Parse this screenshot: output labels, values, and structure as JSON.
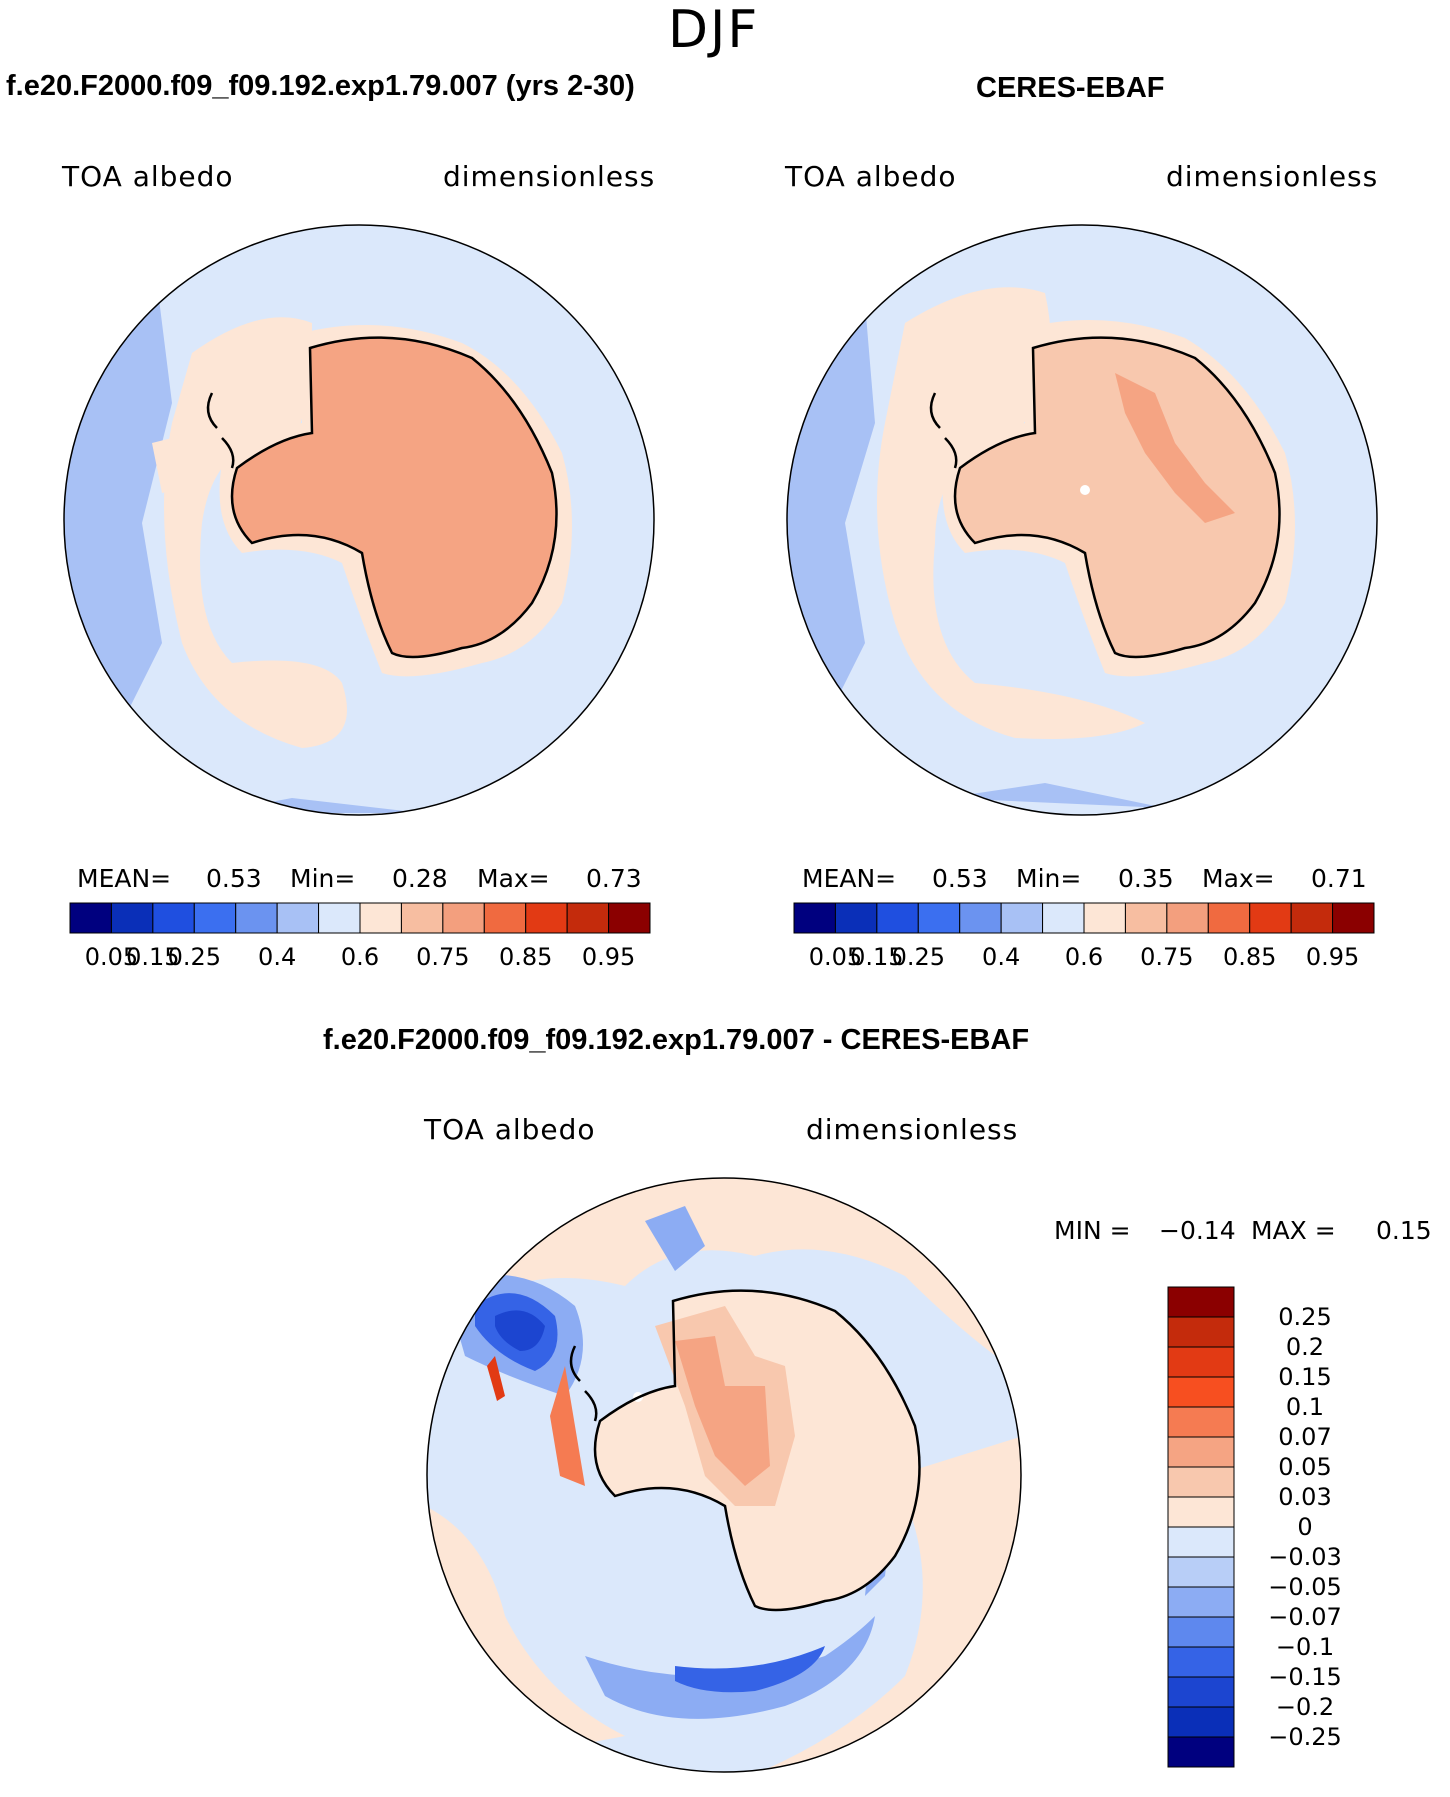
{
  "figure": {
    "season": "DJF",
    "panels": [
      {
        "id": "model",
        "title": "f.e20.F2000.f09_f09.192.exp1.79.007 (yrs 2-30)",
        "left_label": "TOA albedo",
        "right_label": "dimensionless",
        "stats": {
          "mean_label": "MEAN=",
          "mean": "0.53",
          "min_label": "Min=",
          "min": "0.28",
          "max_label": "Max=",
          "max": "0.73"
        }
      },
      {
        "id": "obs",
        "title": "CERES-EBAF",
        "left_label": "TOA albedo",
        "right_label": "dimensionless",
        "stats": {
          "mean_label": "MEAN=",
          "mean": "0.53",
          "min_label": "Min=",
          "min": "0.35",
          "max_label": "Max=",
          "max": "0.71"
        }
      },
      {
        "id": "diff",
        "title": "f.e20.F2000.f09_f09.192.exp1.79.007 - CERES-EBAF",
        "left_label": "TOA albedo",
        "right_label": "dimensionless",
        "stats": {
          "min_label": "MIN =",
          "min": "−0.14",
          "max_label": "MAX =",
          "max": "0.15"
        }
      }
    ],
    "colorbar_abs": {
      "ticks": [
        "0.05",
        "0.15",
        "0.25",
        "0.4",
        "0.6",
        "0.75",
        "0.85",
        "0.95"
      ],
      "colors": [
        "#00007f",
        "#0a2fb8",
        "#1f4fe0",
        "#3b6ff0",
        "#6b93f0",
        "#a8c1f5",
        "#dbe8fb",
        "#fde6d6",
        "#f7bea1",
        "#f39f7e",
        "#f06a40",
        "#e23a14",
        "#c42b0c",
        "#8b0000"
      ]
    },
    "colorbar_diff": {
      "ticks": [
        "0.25",
        "0.2",
        "0.15",
        "0.1",
        "0.07",
        "0.05",
        "0.03",
        "0",
        "−0.03",
        "−0.05",
        "−0.07",
        "−0.1",
        "−0.15",
        "−0.2",
        "−0.25"
      ],
      "colors": [
        "#8b0000",
        "#c42b0c",
        "#e23a14",
        "#f74f20",
        "#f57b52",
        "#f5a483",
        "#f8c8ae",
        "#fde6d6",
        "#dbe8fb",
        "#b8cef7",
        "#8cacf3",
        "#5e88ee",
        "#3563e6",
        "#1c45d0",
        "#0a2fb8",
        "#00007f"
      ]
    },
    "map_colors": {
      "ocean": "#dbe8fb",
      "ocean_blue": "#a8c1f5",
      "sea_ice": "#fde6d6",
      "antarctica_model": "#f5a483",
      "antarctica_obs": "#f8c8ae",
      "coast": "#000000"
    }
  }
}
